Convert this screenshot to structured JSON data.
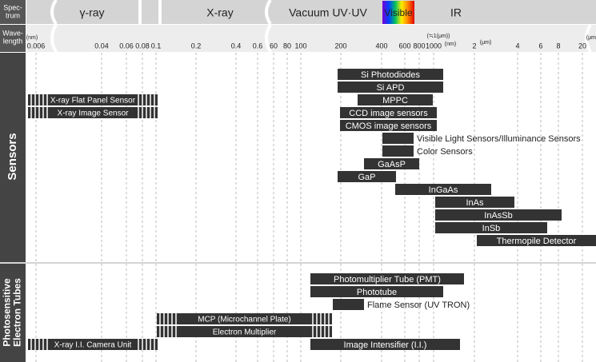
{
  "header": {
    "spectrum_label": [
      "Spec-",
      "trum"
    ],
    "wavelength_label": [
      "Wave-",
      "length"
    ],
    "spectrum": [
      "γ-ray",
      "X-ray",
      "Vacuum UV·UV",
      "Visible",
      "IR"
    ],
    "ticks": [
      "(nm)",
      "0.006",
      "0.04",
      "0.06",
      "0.08",
      "0.1",
      "0.2",
      "0.4",
      "0.6",
      "60",
      "80",
      "100",
      "200",
      "400",
      "600",
      "800",
      "1000",
      "(nm)",
      "(≒1(μm))",
      "2",
      "(μm)",
      "4",
      "6",
      "8",
      "20",
      "(μm)"
    ]
  },
  "sections": [
    {
      "label": [
        "Sensors"
      ],
      "items": [
        "Si Photodiodes",
        "Si APD",
        "MPPC",
        "CCD image sensors",
        "CMOS image sensors",
        "Visible Light Sensors/Illuminance Sensors",
        "Color Sensors",
        "GaAsP",
        "GaP",
        "InGaAs",
        "InAs",
        "InAsSb",
        "InSb",
        "Thermopile Detector",
        "X-ray Flat Panel Sensor",
        "X-ray Image Sensor"
      ]
    },
    {
      "label": [
        "Photosensitive",
        "Electron Tubes"
      ],
      "items": [
        "Photomultiplier Tube (PMT)",
        "Phototube",
        "Flame Sensor (UV TRON)",
        "MCP (Microchannel Plate)",
        "Electron Multiplier",
        "X-ray I.I. Camera Unit",
        "Image Intensifier (I.I.)"
      ]
    }
  ]
}
